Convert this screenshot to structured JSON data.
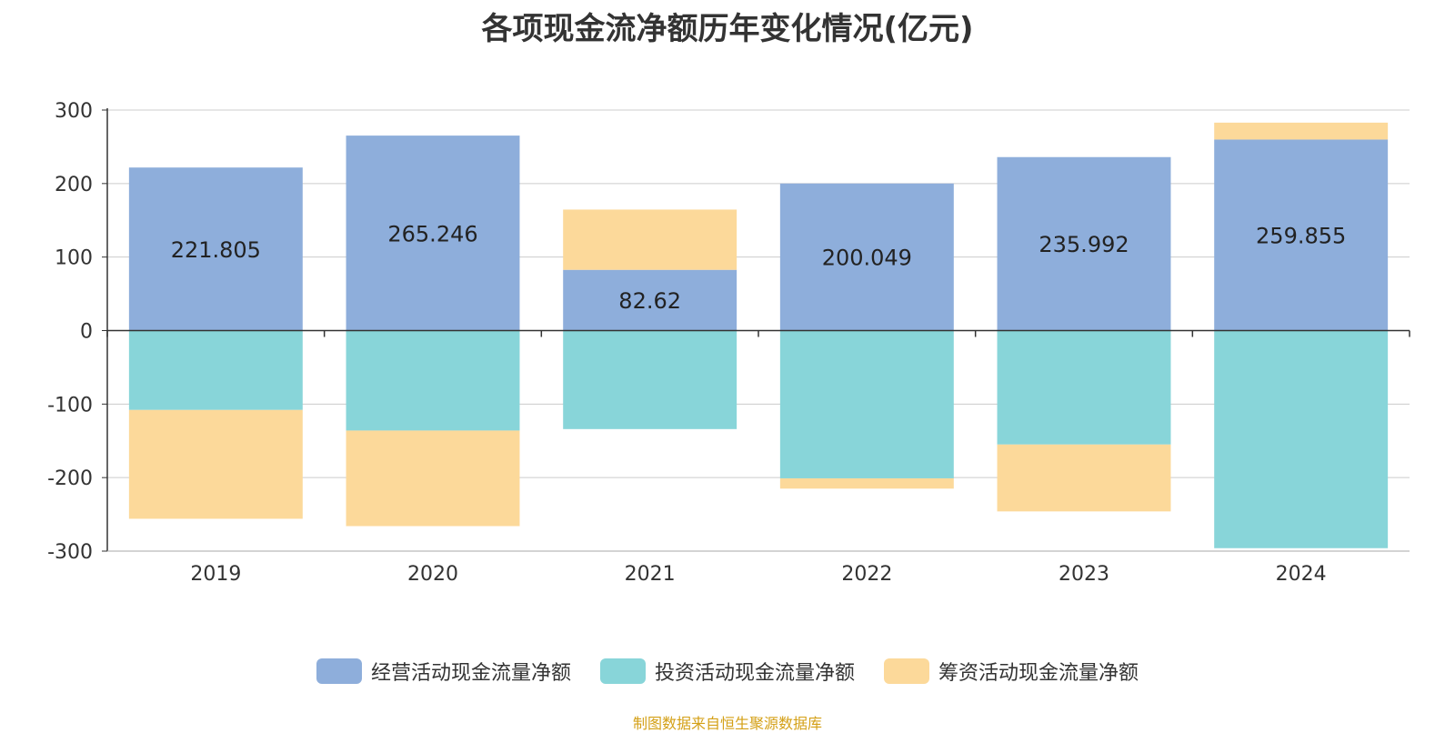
{
  "chart_data": {
    "type": "bar",
    "stacked": true,
    "title": "各项现金流净额历年变化情况(亿元)",
    "categories": [
      "2019",
      "2020",
      "2021",
      "2022",
      "2023",
      "2024"
    ],
    "ylim": [
      -300,
      300
    ],
    "yticks": [
      300,
      200,
      100,
      0,
      -100,
      -200,
      -300
    ],
    "grid": true,
    "legend_position": "bottom",
    "series": [
      {
        "name": "经营活动现金流量净额",
        "color": "#8eaedb",
        "values": [
          221.805,
          265.246,
          82.62,
          200.049,
          235.992,
          259.855
        ],
        "labels": [
          "221.805",
          "265.246",
          "82.62",
          "200.049",
          "235.992",
          "259.855"
        ]
      },
      {
        "name": "投资活动现金流量净额",
        "color": "#88d5d9",
        "values": [
          -108,
          -136,
          -134,
          -201,
          -155,
          -296
        ]
      },
      {
        "name": "筹资活动现金流量净额",
        "color": "#fcd99a",
        "values": [
          -148,
          -130,
          82,
          -14,
          -91,
          23
        ]
      }
    ]
  },
  "source_note": "制图数据来自恒生聚源数据库",
  "source_color": "#d4a017"
}
